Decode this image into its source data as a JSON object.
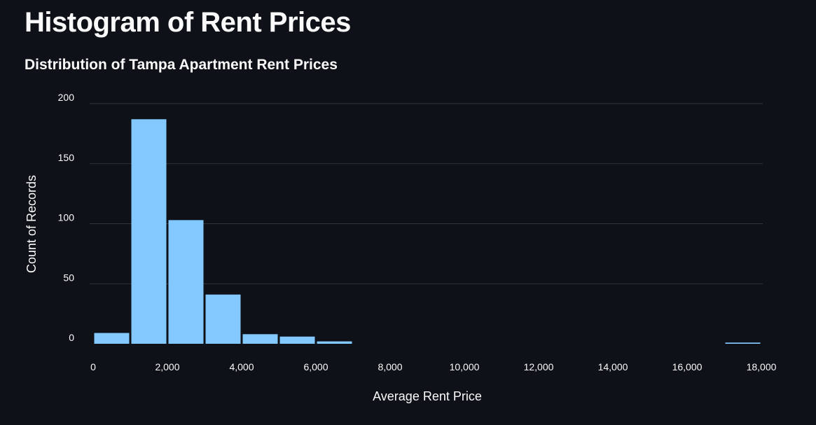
{
  "page": {
    "title": "Histogram of Rent Prices"
  },
  "chart_data": {
    "type": "bar",
    "title": "Distribution of Tampa Apartment Rent Prices",
    "xlabel": "Average Rent Price",
    "ylabel": "Count of Records",
    "xlim": [
      0,
      18000
    ],
    "ylim": [
      0,
      200
    ],
    "bin_width": 1000,
    "x_ticks": [
      0,
      2000,
      4000,
      6000,
      8000,
      10000,
      12000,
      14000,
      16000,
      18000
    ],
    "x_tick_labels": [
      "0",
      "2,000",
      "4,000",
      "6,000",
      "8,000",
      "10,000",
      "12,000",
      "14,000",
      "16,000",
      "18,000"
    ],
    "y_ticks": [
      0,
      50,
      100,
      150,
      200
    ],
    "y_tick_labels": [
      "0",
      "50",
      "100",
      "150",
      "200"
    ],
    "bins": [
      {
        "x0": 0,
        "x1": 1000,
        "count": 9
      },
      {
        "x0": 1000,
        "x1": 2000,
        "count": 187
      },
      {
        "x0": 2000,
        "x1": 3000,
        "count": 103
      },
      {
        "x0": 3000,
        "x1": 4000,
        "count": 41
      },
      {
        "x0": 4000,
        "x1": 5000,
        "count": 8
      },
      {
        "x0": 5000,
        "x1": 6000,
        "count": 6
      },
      {
        "x0": 6000,
        "x1": 7000,
        "count": 2
      },
      {
        "x0": 17000,
        "x1": 18000,
        "count": 1
      }
    ],
    "bar_color": "#83c9ff",
    "grid": true,
    "grid_color": "#31333f",
    "background": "#0e1117"
  }
}
